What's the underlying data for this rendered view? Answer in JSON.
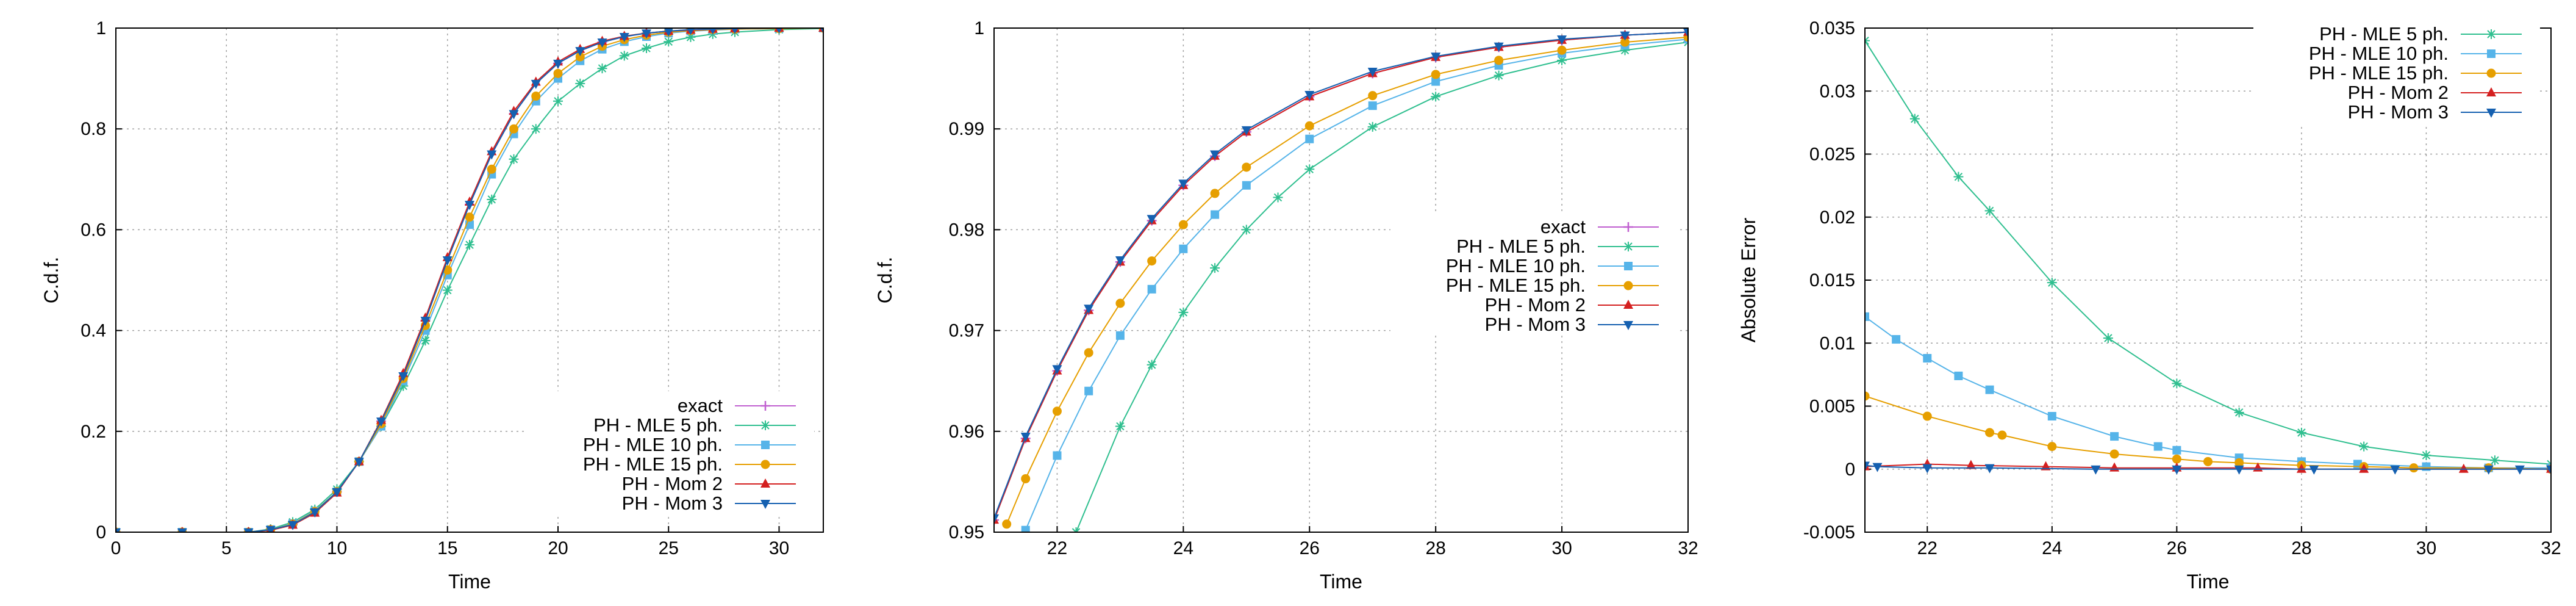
{
  "colors": {
    "exact": "#c05fd0",
    "mle5": "#2fbf8f",
    "mle10": "#56b4e9",
    "mle15": "#e69f00",
    "mom2": "#d42020",
    "mom3": "#1560b0",
    "grid": "#a0a0a0"
  },
  "chart_data": [
    {
      "type": "line",
      "xlabel": "Time",
      "ylabel": "C.d.f.",
      "xlim": [
        0,
        32
      ],
      "ylim": [
        0,
        1
      ],
      "xticks": [
        0,
        5,
        10,
        15,
        20,
        25,
        30
      ],
      "yticks": [
        0,
        0.2,
        0.4,
        0.6,
        0.8,
        1
      ],
      "xtick_labels": [
        "0",
        "5",
        "10",
        "15",
        "20",
        "25",
        "30"
      ],
      "ytick_labels": [
        "0",
        "0.2",
        "0.4",
        "0.6",
        "0.8",
        "1"
      ],
      "legend_position": "bottom-right",
      "series": [
        {
          "name": "exact",
          "key": "exact",
          "marker": "plus",
          "x": [
            0,
            3,
            6,
            7,
            8,
            9,
            10,
            11,
            12,
            13,
            14,
            15,
            16,
            17,
            18,
            19,
            20,
            21,
            22,
            23,
            24,
            25,
            26,
            27,
            28,
            30,
            32
          ],
          "y": [
            0,
            0,
            0,
            0.005,
            0.015,
            0.04,
            0.08,
            0.14,
            0.22,
            0.31,
            0.42,
            0.54,
            0.65,
            0.75,
            0.83,
            0.89,
            0.93,
            0.955,
            0.972,
            0.983,
            0.99,
            0.994,
            0.997,
            0.998,
            0.999,
            1,
            1
          ]
        },
        {
          "name": "PH - MLE 5 ph.",
          "key": "mle5",
          "marker": "star",
          "x": [
            0,
            3,
            6,
            7,
            8,
            9,
            10,
            11,
            12,
            13,
            14,
            15,
            16,
            17,
            18,
            19,
            20,
            21,
            22,
            23,
            24,
            25,
            26,
            27,
            28,
            30,
            32
          ],
          "y": [
            0,
            0,
            0,
            0.006,
            0.02,
            0.045,
            0.085,
            0.14,
            0.21,
            0.29,
            0.38,
            0.48,
            0.57,
            0.66,
            0.74,
            0.8,
            0.855,
            0.89,
            0.92,
            0.945,
            0.96,
            0.973,
            0.982,
            0.988,
            0.992,
            0.997,
            0.999
          ]
        },
        {
          "name": "PH - MLE 10 ph.",
          "key": "mle10",
          "marker": "square",
          "x": [
            0,
            3,
            6,
            7,
            8,
            9,
            10,
            11,
            12,
            13,
            14,
            15,
            16,
            17,
            18,
            19,
            20,
            21,
            22,
            23,
            24,
            25,
            26,
            27,
            28,
            30,
            32
          ],
          "y": [
            0,
            0,
            0,
            0.005,
            0.017,
            0.042,
            0.08,
            0.14,
            0.21,
            0.3,
            0.4,
            0.51,
            0.61,
            0.71,
            0.79,
            0.855,
            0.9,
            0.935,
            0.958,
            0.973,
            0.983,
            0.99,
            0.994,
            0.996,
            0.998,
            0.999,
            1
          ]
        },
        {
          "name": "PH - MLE 15 ph.",
          "key": "mle15",
          "marker": "circle",
          "x": [
            0,
            3,
            6,
            7,
            8,
            9,
            10,
            11,
            12,
            13,
            14,
            15,
            16,
            17,
            18,
            19,
            20,
            21,
            22,
            23,
            24,
            25,
            26,
            27,
            28,
            30,
            32
          ],
          "y": [
            0,
            0,
            0,
            0.005,
            0.016,
            0.041,
            0.08,
            0.14,
            0.215,
            0.305,
            0.41,
            0.52,
            0.625,
            0.72,
            0.8,
            0.865,
            0.91,
            0.943,
            0.964,
            0.977,
            0.986,
            0.992,
            0.995,
            0.997,
            0.998,
            0.999,
            1
          ]
        },
        {
          "name": "PH - Mom 2",
          "key": "mom2",
          "marker": "triangle-up",
          "x": [
            0,
            3,
            6,
            7,
            8,
            9,
            10,
            11,
            12,
            13,
            14,
            15,
            16,
            17,
            18,
            19,
            20,
            21,
            22,
            23,
            24,
            25,
            26,
            27,
            28,
            30,
            32
          ],
          "y": [
            0,
            0,
            0,
            0.004,
            0.014,
            0.038,
            0.078,
            0.14,
            0.222,
            0.315,
            0.425,
            0.545,
            0.655,
            0.755,
            0.835,
            0.893,
            0.933,
            0.958,
            0.974,
            0.984,
            0.99,
            0.994,
            0.996,
            0.998,
            0.999,
            1,
            1
          ]
        },
        {
          "name": "PH - Mom 3",
          "key": "mom3",
          "marker": "triangle-down",
          "x": [
            0,
            3,
            6,
            7,
            8,
            9,
            10,
            11,
            12,
            13,
            14,
            15,
            16,
            17,
            18,
            19,
            20,
            21,
            22,
            23,
            24,
            25,
            26,
            27,
            28,
            30,
            32
          ],
          "y": [
            0,
            0,
            0,
            0.005,
            0.015,
            0.04,
            0.08,
            0.14,
            0.22,
            0.31,
            0.42,
            0.54,
            0.65,
            0.75,
            0.83,
            0.89,
            0.93,
            0.955,
            0.972,
            0.983,
            0.99,
            0.994,
            0.997,
            0.998,
            0.999,
            1,
            1
          ]
        }
      ]
    },
    {
      "type": "line",
      "xlabel": "Time",
      "ylabel": "C.d.f.",
      "xlim": [
        21,
        32
      ],
      "ylim": [
        0.95,
        1
      ],
      "xticks": [
        22,
        24,
        26,
        28,
        30,
        32
      ],
      "yticks": [
        0.95,
        0.96,
        0.97,
        0.98,
        0.99,
        1
      ],
      "xtick_labels": [
        "22",
        "24",
        "26",
        "28",
        "30",
        "32"
      ],
      "ytick_labels": [
        "0.95",
        "0.96",
        "0.97",
        "0.98",
        "0.99",
        "1"
      ],
      "legend_position": "center-right",
      "series": [
        {
          "name": "exact",
          "key": "exact",
          "marker": "plus",
          "x": [
            21,
            21.5,
            22,
            22.5,
            23,
            23.5,
            24,
            24.5,
            25,
            26,
            27,
            28,
            29,
            30,
            31,
            32
          ],
          "y": [
            0.9512,
            0.9593,
            0.966,
            0.972,
            0.9768,
            0.9809,
            0.9844,
            0.9873,
            0.9897,
            0.9932,
            0.9955,
            0.9971,
            0.9981,
            0.9988,
            0.9993,
            0.9996
          ]
        },
        {
          "name": "PH - MLE 5 ph.",
          "key": "mle5",
          "marker": "star",
          "x": [
            22.3,
            23,
            23.5,
            24,
            24.5,
            25,
            25.5,
            26,
            27,
            28,
            29,
            30,
            31,
            32
          ],
          "y": [
            0.95,
            0.9605,
            0.9666,
            0.9718,
            0.9762,
            0.98,
            0.9832,
            0.986,
            0.9902,
            0.9932,
            0.9953,
            0.9968,
            0.9978,
            0.9986
          ]
        },
        {
          "name": "PH - MLE 10 ph.",
          "key": "mle10",
          "marker": "square",
          "x": [
            21.5,
            22,
            22.5,
            23,
            23.5,
            24,
            24.5,
            25,
            26,
            27,
            28,
            29,
            30,
            31,
            32
          ],
          "y": [
            0.9502,
            0.9576,
            0.964,
            0.9695,
            0.9741,
            0.9781,
            0.9815,
            0.9844,
            0.989,
            0.9923,
            0.9947,
            0.9963,
            0.9975,
            0.9983,
            0.9989
          ]
        },
        {
          "name": "PH - MLE 15 ph.",
          "key": "mle15",
          "marker": "circle",
          "x": [
            21.2,
            21.5,
            22,
            22.5,
            23,
            23.5,
            24,
            24.5,
            25,
            26,
            27,
            28,
            29,
            30,
            31,
            32
          ],
          "y": [
            0.9508,
            0.9553,
            0.962,
            0.9678,
            0.9727,
            0.9769,
            0.9805,
            0.9836,
            0.9862,
            0.9903,
            0.9933,
            0.9954,
            0.9968,
            0.9978,
            0.9986,
            0.9991
          ]
        },
        {
          "name": "PH - Mom 2",
          "key": "mom2",
          "marker": "triangle-up",
          "x": [
            21,
            21.5,
            22,
            22.5,
            23,
            23.5,
            24,
            24.5,
            25,
            26,
            27,
            28,
            29,
            30,
            31,
            32
          ],
          "y": [
            0.9512,
            0.9593,
            0.966,
            0.972,
            0.9768,
            0.9809,
            0.9844,
            0.9873,
            0.9897,
            0.9932,
            0.9955,
            0.9971,
            0.9981,
            0.9988,
            0.9993,
            0.9996
          ]
        },
        {
          "name": "PH - Mom 3",
          "key": "mom3",
          "marker": "triangle-down",
          "x": [
            21,
            21.5,
            22,
            22.5,
            23,
            23.5,
            24,
            24.5,
            25,
            26,
            27,
            28,
            29,
            30,
            31,
            32
          ],
          "y": [
            0.9514,
            0.9595,
            0.9662,
            0.9722,
            0.977,
            0.9811,
            0.9846,
            0.9875,
            0.9899,
            0.9934,
            0.9957,
            0.9972,
            0.9982,
            0.9989,
            0.9993,
            0.9996
          ]
        }
      ]
    },
    {
      "type": "line",
      "xlabel": "Time",
      "ylabel": "Absolute Error",
      "xlim": [
        21,
        32
      ],
      "ylim": [
        -0.005,
        0.035
      ],
      "xticks": [
        22,
        24,
        26,
        28,
        30,
        32
      ],
      "yticks": [
        -0.005,
        0,
        0.005,
        0.01,
        0.015,
        0.02,
        0.025,
        0.03,
        0.035
      ],
      "xtick_labels": [
        "22",
        "24",
        "26",
        "28",
        "30",
        "32"
      ],
      "ytick_labels": [
        "-0.005",
        "0",
        "0.005",
        "0.01",
        "0.015",
        "0.02",
        "0.025",
        "0.03",
        "0.035"
      ],
      "legend_position": "top-right",
      "series": [
        {
          "name": "PH - MLE 5 ph.",
          "key": "mle5",
          "marker": "star",
          "x": [
            21,
            21.8,
            22.5,
            23,
            24,
            24.9,
            26,
            27,
            28,
            29,
            30,
            31.1,
            32
          ],
          "y": [
            0.034,
            0.0278,
            0.0232,
            0.0205,
            0.0148,
            0.0104,
            0.0068,
            0.0045,
            0.0029,
            0.0018,
            0.0011,
            0.0007,
            0.0004
          ]
        },
        {
          "name": "PH - MLE 10 ph.",
          "key": "mle10",
          "marker": "square",
          "x": [
            21,
            21.5,
            22,
            22.5,
            23,
            24,
            25,
            25.7,
            26,
            27,
            28,
            28.9,
            30,
            31,
            32
          ],
          "y": [
            0.0121,
            0.0103,
            0.0088,
            0.0074,
            0.0063,
            0.0042,
            0.0026,
            0.0018,
            0.0015,
            0.0009,
            0.0006,
            0.0004,
            0.0002,
            0.0001,
            0.0001
          ]
        },
        {
          "name": "PH - MLE 15 ph.",
          "key": "mle15",
          "marker": "circle",
          "x": [
            21,
            22,
            23,
            23.2,
            24,
            25,
            26,
            26.5,
            27,
            28,
            29,
            29.8,
            31,
            32
          ],
          "y": [
            0.0058,
            0.0042,
            0.0029,
            0.0027,
            0.0018,
            0.0012,
            0.0008,
            0.0006,
            0.0005,
            0.0003,
            0.0002,
            0.0001,
            0.0001,
            0
          ]
        },
        {
          "name": "PH - Mom 2",
          "key": "mom2",
          "marker": "triangle-up",
          "x": [
            21,
            22,
            22.7,
            23.9,
            25,
            26,
            27.3,
            28,
            29,
            30.6,
            32
          ],
          "y": [
            0.0002,
            0.0004,
            0.0003,
            0.0002,
            0.0001,
            0.0001,
            0.0001,
            0,
            0,
            0,
            0
          ]
        },
        {
          "name": "PH - Mom 3",
          "key": "mom3",
          "marker": "triangle-down",
          "x": [
            21,
            21.2,
            22,
            23,
            24.7,
            26,
            27,
            28.2,
            29.5,
            31,
            31.5,
            32
          ],
          "y": [
            0.0003,
            0.0002,
            0.0001,
            0.0001,
            0,
            0,
            0,
            0,
            0,
            0,
            0,
            0
          ]
        }
      ]
    }
  ]
}
